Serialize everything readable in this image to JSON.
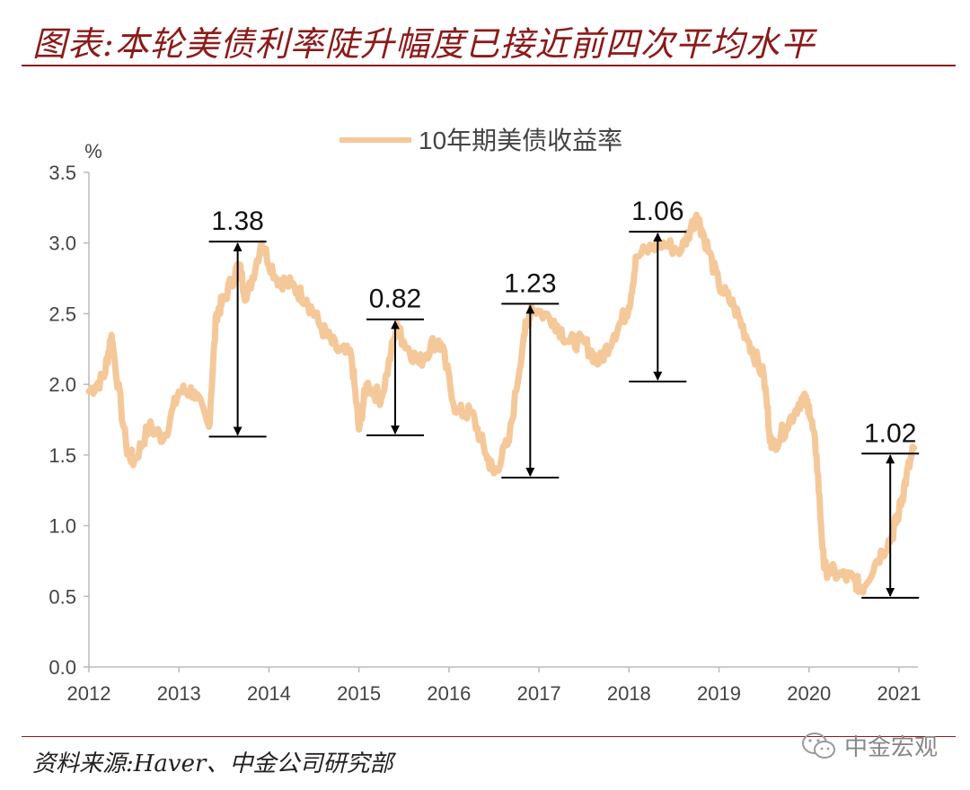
{
  "header": {
    "title": "图表:本轮美债利率陡升幅度已接近前四次平均水平"
  },
  "footer": {
    "source": "资料来源:Haver、中金公司研究部",
    "brand": "中金宏观"
  },
  "chart_data": {
    "type": "line",
    "ylabel": "%",
    "ylim": [
      0,
      3.5
    ],
    "yticks": [
      "0.0",
      "0.5",
      "1.0",
      "1.5",
      "2.0",
      "2.5",
      "3.0",
      "3.5"
    ],
    "xticks": [
      "2012",
      "2013",
      "2014",
      "2015",
      "2016",
      "2017",
      "2018",
      "2019",
      "2020",
      "2021"
    ],
    "legend": "top-center",
    "series": [
      {
        "name": "10年期美债收益率",
        "color": "#f5c89a",
        "x": [
          "2012-01",
          "2012-03",
          "2012-04",
          "2012-06",
          "2012-07",
          "2012-09",
          "2012-11",
          "2013-01",
          "2013-03",
          "2013-05",
          "2013-06",
          "2013-07",
          "2013-09",
          "2013-10",
          "2013-12",
          "2014-02",
          "2014-04",
          "2014-06",
          "2014-08",
          "2014-10",
          "2014-12",
          "2015-01",
          "2015-02",
          "2015-04",
          "2015-06",
          "2015-07",
          "2015-09",
          "2015-11",
          "2015-12",
          "2016-02",
          "2016-04",
          "2016-06",
          "2016-07",
          "2016-09",
          "2016-11",
          "2016-12",
          "2017-03",
          "2017-05",
          "2017-07",
          "2017-09",
          "2017-11",
          "2018-01",
          "2018-02",
          "2018-05",
          "2018-08",
          "2018-10",
          "2018-11",
          "2019-01",
          "2019-03",
          "2019-05",
          "2019-07",
          "2019-08",
          "2019-10",
          "2019-12",
          "2020-01",
          "2020-02",
          "2020-03",
          "2020-05",
          "2020-07",
          "2020-08",
          "2020-10",
          "2020-12",
          "2021-01",
          "2021-02",
          "2021-03"
        ],
        "values": [
          1.95,
          2.05,
          2.35,
          1.55,
          1.45,
          1.7,
          1.62,
          1.95,
          1.95,
          1.7,
          2.5,
          2.6,
          2.85,
          2.6,
          3.0,
          2.75,
          2.7,
          2.6,
          2.4,
          2.25,
          2.2,
          1.68,
          2.0,
          1.9,
          2.4,
          2.3,
          2.15,
          2.3,
          2.27,
          1.8,
          1.8,
          1.5,
          1.37,
          1.6,
          2.35,
          2.55,
          2.45,
          2.3,
          2.3,
          2.15,
          2.35,
          2.55,
          2.9,
          3.0,
          2.95,
          3.2,
          3.05,
          2.7,
          2.55,
          2.3,
          2.05,
          1.55,
          1.7,
          1.9,
          1.85,
          1.5,
          0.7,
          0.65,
          0.62,
          0.55,
          0.75,
          0.92,
          1.1,
          1.35,
          1.55
        ]
      }
    ],
    "annotations": [
      {
        "label": "1.38",
        "x_start": "2013-05",
        "low": 1.63,
        "high": 3.01
      },
      {
        "label": "0.82",
        "x_start": "2015-02",
        "low": 1.64,
        "high": 2.46
      },
      {
        "label": "1.23",
        "x_start": "2016-08",
        "low": 1.34,
        "high": 2.57
      },
      {
        "label": "1.06",
        "x_start": "2018-01",
        "low": 2.02,
        "high": 3.08
      },
      {
        "label": "1.02",
        "x_start": "2020-08",
        "low": 0.49,
        "high": 1.51
      }
    ]
  }
}
